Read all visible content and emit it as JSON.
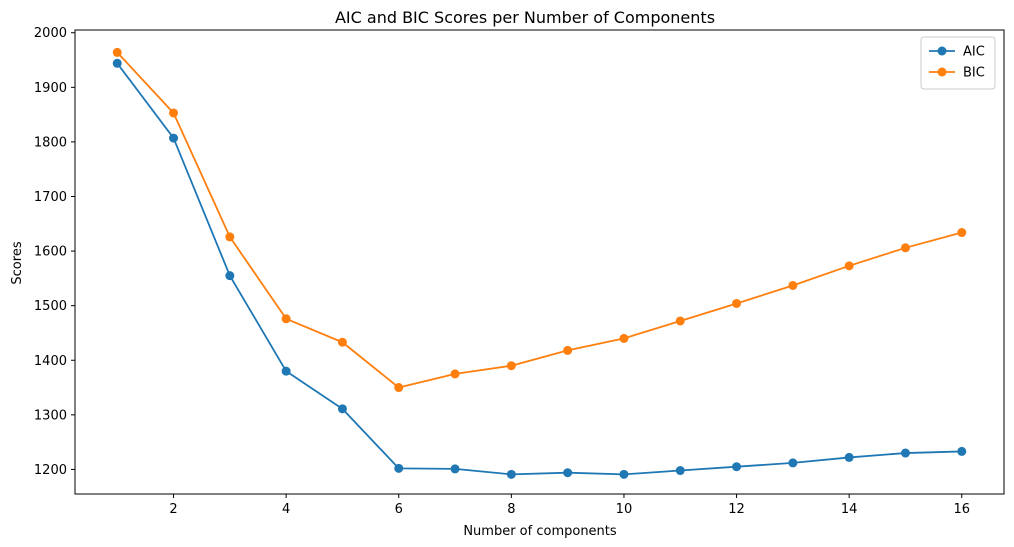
{
  "chart_data": {
    "type": "line",
    "title": "AIC and BIC Scores per Number of Components",
    "xlabel": "Number of components",
    "ylabel": "Scores",
    "x": [
      1,
      2,
      3,
      4,
      5,
      6,
      7,
      8,
      9,
      10,
      11,
      12,
      13,
      14,
      15,
      16
    ],
    "xlim": [
      0.25,
      16.75
    ],
    "ylim": [
      1155,
      2005
    ],
    "xticks": [
      2,
      4,
      6,
      8,
      10,
      12,
      14,
      16
    ],
    "yticks": [
      1200,
      1300,
      1400,
      1500,
      1600,
      1700,
      1800,
      1900,
      2000
    ],
    "grid": false,
    "legend_position": "top-right",
    "series": [
      {
        "name": "AIC",
        "color": "#1f77b4",
        "marker": "circle",
        "values": [
          1944,
          1807,
          1555,
          1380,
          1311,
          1202,
          1201,
          1191,
          1194,
          1191,
          1198,
          1205,
          1212,
          1222,
          1230,
          1233
        ]
      },
      {
        "name": "BIC",
        "color": "#ff7f0e",
        "marker": "circle",
        "values": [
          1964,
          1853,
          1626,
          1476,
          1433,
          1350,
          1375,
          1390,
          1418,
          1440,
          1472,
          1504,
          1537,
          1573,
          1606,
          1634
        ]
      }
    ]
  }
}
